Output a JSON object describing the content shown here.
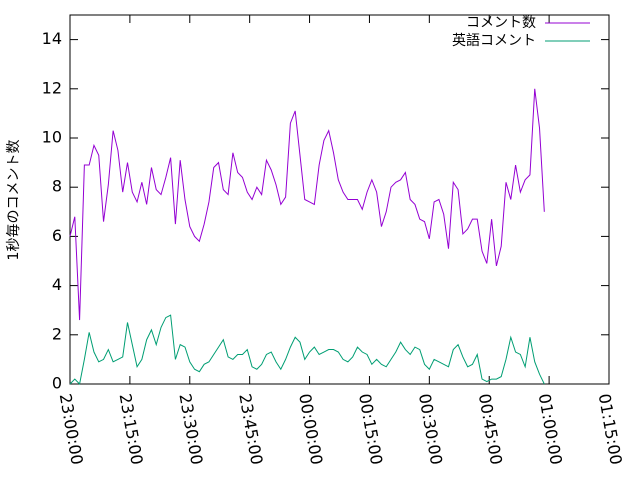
{
  "chart_data": {
    "type": "line",
    "ylabel": "1秒毎のコメント数",
    "x": [
      0,
      72,
      144,
      216,
      288,
      360,
      432,
      504,
      576,
      648,
      720,
      792,
      864,
      936,
      1008,
      1080,
      1152,
      1224,
      1296,
      1368,
      1440,
      1512,
      1584,
      1656,
      1728,
      1800,
      1872,
      1944,
      2016,
      2088,
      2160,
      2232,
      2304,
      2376,
      2448,
      2520,
      2592,
      2664,
      2736,
      2808,
      2880,
      2952,
      3024,
      3096,
      3168,
      3240,
      3312,
      3384,
      3456,
      3528,
      3600,
      3672,
      3744,
      3816,
      3888,
      3960,
      4032,
      4104,
      4176,
      4248,
      4320,
      4392,
      4464,
      4536,
      4608,
      4680,
      4752,
      4824,
      4896,
      4968,
      5040,
      5112,
      5184,
      5256,
      5328,
      5400,
      5472,
      5544,
      5616,
      5688,
      5760,
      5832,
      5904,
      5976,
      6048,
      6120,
      6192,
      6264,
      6336,
      6408,
      6480,
      6552,
      6624,
      6696,
      6768,
      6840,
      6912,
      6984,
      7056,
      7128
    ],
    "series": [
      {
        "name": "コメント数",
        "color": "#9400d3",
        "values": [
          6.0,
          6.8,
          2.6,
          8.9,
          8.9,
          9.7,
          9.3,
          6.6,
          8.1,
          10.3,
          9.5,
          7.8,
          9.0,
          7.8,
          7.4,
          8.2,
          7.3,
          8.8,
          7.9,
          7.7,
          8.4,
          9.2,
          6.5,
          9.1,
          7.5,
          6.4,
          6.0,
          5.8,
          6.5,
          7.4,
          8.8,
          9.0,
          7.9,
          7.7,
          9.4,
          8.6,
          8.4,
          7.8,
          7.5,
          8.0,
          7.7,
          9.1,
          8.7,
          8.1,
          7.3,
          7.6,
          10.6,
          11.1,
          9.3,
          7.5,
          7.4,
          7.3,
          8.9,
          9.9,
          10.3,
          9.4,
          8.3,
          7.8,
          7.5,
          7.5,
          7.5,
          7.1,
          7.8,
          8.3,
          7.8,
          6.4,
          7.0,
          8.0,
          8.2,
          8.3,
          8.6,
          7.5,
          7.3,
          6.7,
          6.6,
          5.9,
          7.4,
          7.5,
          6.9,
          5.5,
          8.2,
          7.9,
          6.1,
          6.3,
          6.7,
          6.7,
          5.4,
          4.9,
          6.7,
          4.8,
          5.6,
          8.2,
          7.5,
          8.9,
          7.8,
          8.3,
          8.5,
          12.0,
          10.4,
          7.0
        ]
      },
      {
        "name": "英語コメント",
        "color": "#009e73",
        "values": [
          0.0,
          0.2,
          0.0,
          1.0,
          2.1,
          1.3,
          0.9,
          1.0,
          1.4,
          0.9,
          1.0,
          1.1,
          2.5,
          1.6,
          0.7,
          1.0,
          1.8,
          2.2,
          1.6,
          2.3,
          2.7,
          2.8,
          1.0,
          1.6,
          1.5,
          0.9,
          0.6,
          0.5,
          0.8,
          0.9,
          1.2,
          1.5,
          1.8,
          1.1,
          1.0,
          1.2,
          1.2,
          1.4,
          0.7,
          0.6,
          0.8,
          1.2,
          1.3,
          0.9,
          0.6,
          1.0,
          1.5,
          1.9,
          1.7,
          1.0,
          1.3,
          1.5,
          1.2,
          1.3,
          1.4,
          1.4,
          1.3,
          1.0,
          0.9,
          1.1,
          1.5,
          1.3,
          1.2,
          0.8,
          1.0,
          0.8,
          0.7,
          1.0,
          1.3,
          1.7,
          1.4,
          1.2,
          1.5,
          1.4,
          0.8,
          0.6,
          1.0,
          0.9,
          0.8,
          0.7,
          1.4,
          1.6,
          1.1,
          0.7,
          0.8,
          1.2,
          0.2,
          0.1,
          0.2,
          0.2,
          0.3,
          1.0,
          1.9,
          1.3,
          1.2,
          0.7,
          1.9,
          0.9,
          0.4,
          0.0
        ]
      }
    ],
    "xlim": [
      0,
      8100
    ],
    "xticks": [
      {
        "value": 0,
        "label": "23:00:00"
      },
      {
        "value": 900,
        "label": "23:15:00"
      },
      {
        "value": 1800,
        "label": "23:30:00"
      },
      {
        "value": 2700,
        "label": "23:45:00"
      },
      {
        "value": 3600,
        "label": "00:00:00"
      },
      {
        "value": 4500,
        "label": "00:15:00"
      },
      {
        "value": 5400,
        "label": "00:30:00"
      },
      {
        "value": 6300,
        "label": "00:45:00"
      },
      {
        "value": 7200,
        "label": "01:00:00"
      },
      {
        "value": 8100,
        "label": "01:15:00"
      }
    ],
    "ylim": [
      0,
      15
    ],
    "yticks": [
      0,
      2,
      4,
      6,
      8,
      10,
      12,
      14
    ],
    "legend": "top-right"
  }
}
